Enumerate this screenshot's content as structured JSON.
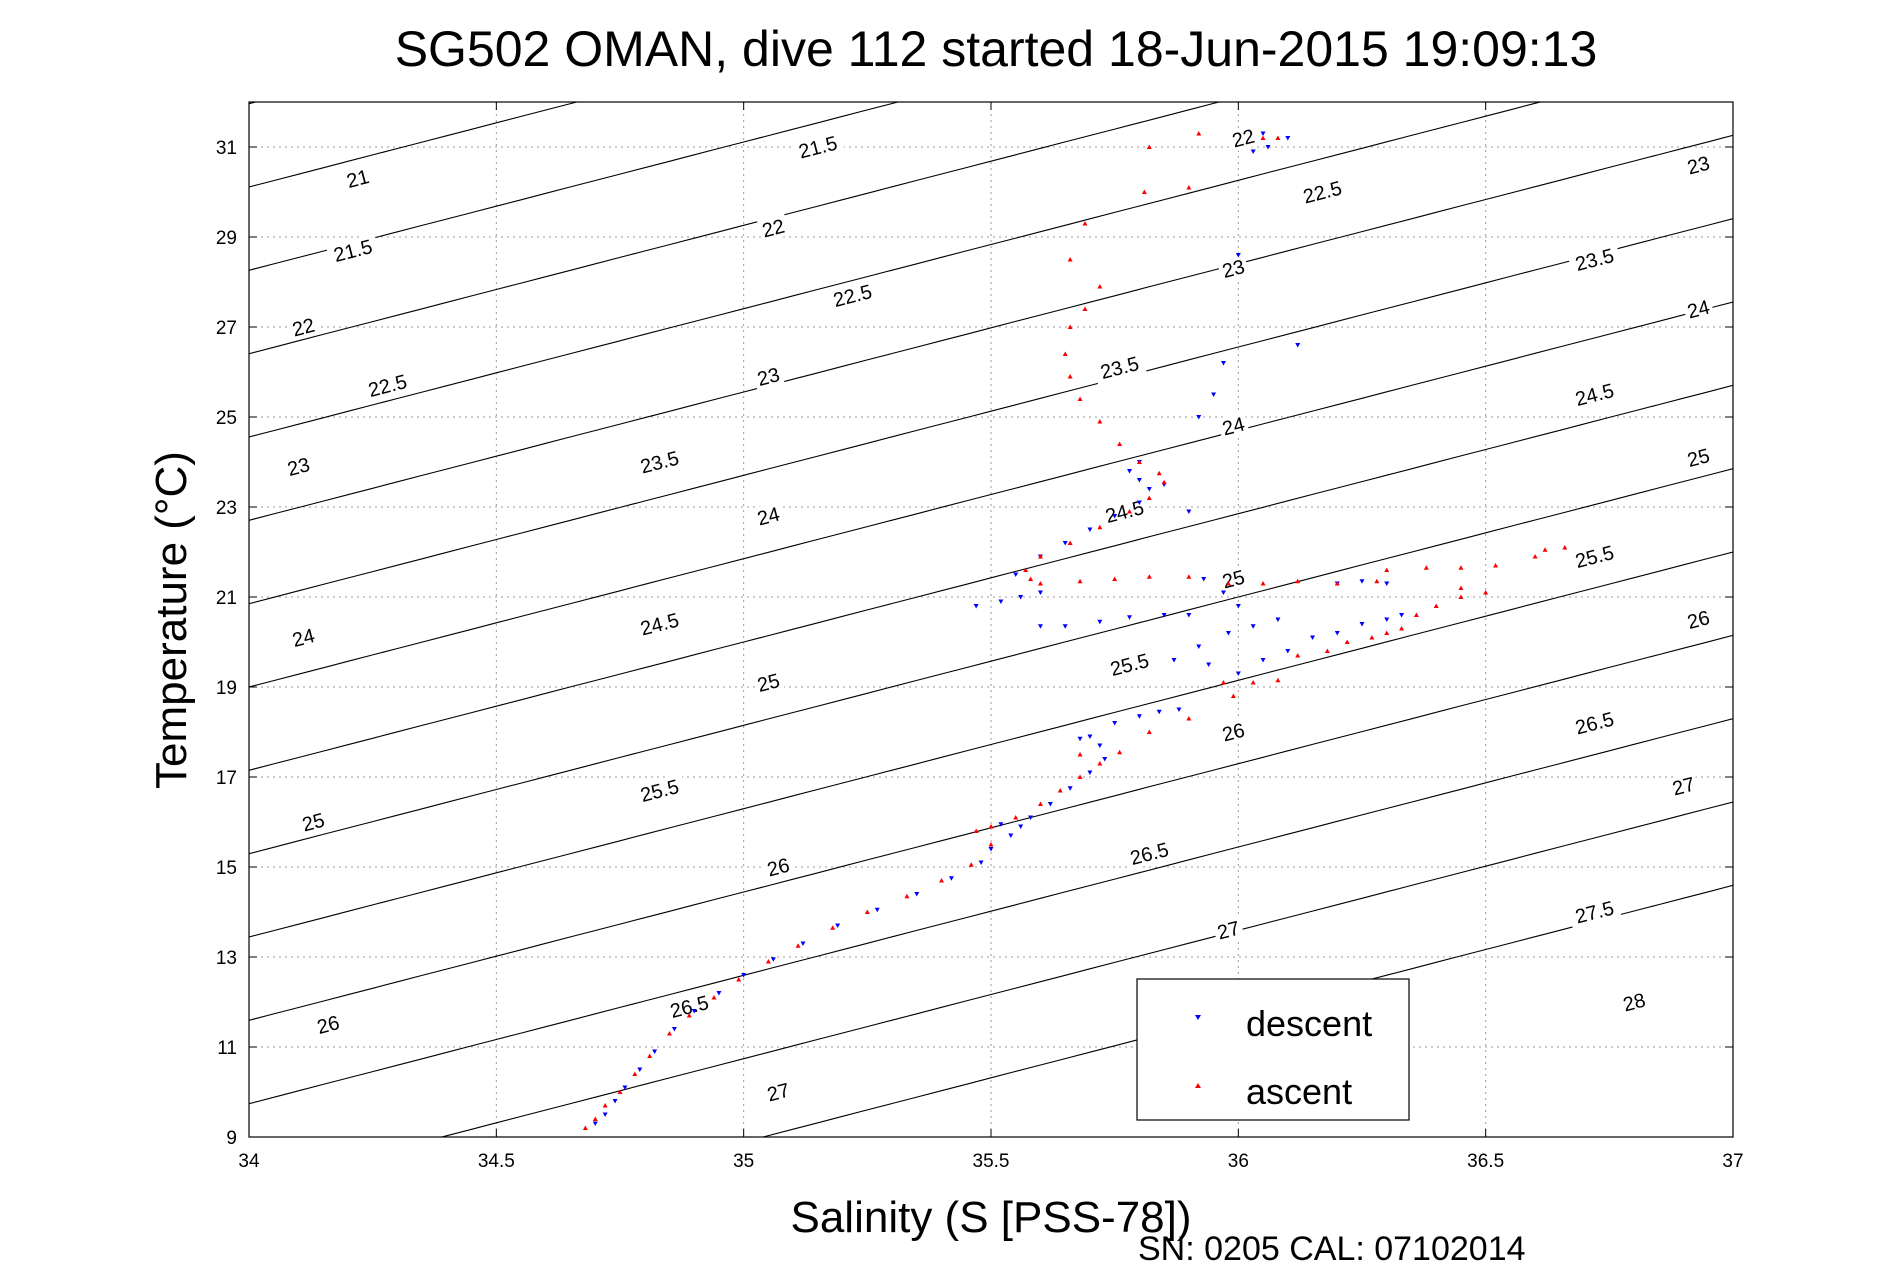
{
  "chart_data": {
    "type": "scatter",
    "title": "SG502 OMAN, dive 112 started 18-Jun-2015 19:09:13",
    "xlabel": "Salinity (S [PSS-78])",
    "ylabel": "Temperature (°C)",
    "footer": "SN: 0205  CAL: 07102014",
    "xlim": [
      34,
      37
    ],
    "ylim": [
      9,
      32
    ],
    "xticks": [
      34,
      34.5,
      35,
      35.5,
      36,
      36.5,
      37
    ],
    "xtick_labels": [
      "34",
      "34.5",
      "35",
      "35.5",
      "36",
      "36.5",
      "37"
    ],
    "yticks": [
      9,
      11,
      13,
      15,
      17,
      19,
      21,
      23,
      25,
      27,
      29,
      31
    ],
    "ytick_labels": [
      "9",
      "11",
      "13",
      "15",
      "17",
      "19",
      "21",
      "23",
      "25",
      "27",
      "29",
      "31"
    ],
    "grid": true,
    "legend": {
      "position": "bottom-right",
      "entries": [
        {
          "label": "descent",
          "color": "#0000ff",
          "marker": "triangle-down"
        },
        {
          "label": "ascent",
          "color": "#ff0000",
          "marker": "triangle-up"
        }
      ]
    },
    "contours": {
      "quantity": "density anomaly (sigma-theta)",
      "levels": [
        "21",
        "21.5",
        "22",
        "22.5",
        "23",
        "23.5",
        "24",
        "24.5",
        "25",
        "25.5",
        "26",
        "26.5",
        "27",
        "27.5",
        "28"
      ],
      "labels": [
        {
          "text": "21",
          "s": 34.22,
          "t": 30.3
        },
        {
          "text": "21.5",
          "s": 34.21,
          "t": 28.7
        },
        {
          "text": "22",
          "s": 34.11,
          "t": 27.0
        },
        {
          "text": "22.5",
          "s": 34.28,
          "t": 25.7
        },
        {
          "text": "23",
          "s": 34.1,
          "t": 23.9
        },
        {
          "text": "24",
          "s": 34.11,
          "t": 20.1
        },
        {
          "text": "25",
          "s": 34.13,
          "t": 16.0
        },
        {
          "text": "26",
          "s": 34.16,
          "t": 11.5
        },
        {
          "text": "21.5",
          "s": 35.15,
          "t": 31.0
        },
        {
          "text": "22",
          "s": 35.06,
          "t": 29.2
        },
        {
          "text": "22.5",
          "s": 35.22,
          "t": 27.7
        },
        {
          "text": "23",
          "s": 35.05,
          "t": 25.9
        },
        {
          "text": "23.5",
          "s": 34.83,
          "t": 24.0
        },
        {
          "text": "24",
          "s": 35.05,
          "t": 22.8
        },
        {
          "text": "24.5",
          "s": 34.83,
          "t": 20.4
        },
        {
          "text": "25",
          "s": 35.05,
          "t": 19.1
        },
        {
          "text": "25.5",
          "s": 34.83,
          "t": 16.7
        },
        {
          "text": "26",
          "s": 35.07,
          "t": 15.0
        },
        {
          "text": "26.5",
          "s": 34.89,
          "t": 11.9
        },
        {
          "text": "27",
          "s": 35.07,
          "t": 10.0
        },
        {
          "text": "22",
          "s": 36.01,
          "t": 31.2
        },
        {
          "text": "22.5",
          "s": 36.17,
          "t": 30.0
        },
        {
          "text": "23",
          "s": 35.99,
          "t": 28.3
        },
        {
          "text": "23.5",
          "s": 35.76,
          "t": 26.1
        },
        {
          "text": "24",
          "s": 35.99,
          "t": 24.8
        },
        {
          "text": "24.5",
          "s": 35.77,
          "t": 22.9
        },
        {
          "text": "25",
          "s": 35.99,
          "t": 21.4
        },
        {
          "text": "25.5",
          "s": 35.78,
          "t": 19.5
        },
        {
          "text": "26",
          "s": 35.99,
          "t": 18.0
        },
        {
          "text": "26.5",
          "s": 35.82,
          "t": 15.3
        },
        {
          "text": "27",
          "s": 35.98,
          "t": 13.6
        },
        {
          "text": "23",
          "s": 36.93,
          "t": 30.6
        },
        {
          "text": "23.5",
          "s": 36.72,
          "t": 28.5
        },
        {
          "text": "24",
          "s": 36.93,
          "t": 27.4
        },
        {
          "text": "24.5",
          "s": 36.72,
          "t": 25.5
        },
        {
          "text": "25",
          "s": 36.93,
          "t": 24.1
        },
        {
          "text": "25.5",
          "s": 36.72,
          "t": 21.9
        },
        {
          "text": "26",
          "s": 36.93,
          "t": 20.5
        },
        {
          "text": "26.5",
          "s": 36.72,
          "t": 18.2
        },
        {
          "text": "27",
          "s": 36.9,
          "t": 16.8
        },
        {
          "text": "27.5",
          "s": 36.72,
          "t": 14.0
        },
        {
          "text": "28",
          "s": 36.8,
          "t": 12.0
        }
      ]
    },
    "series": [
      {
        "name": "descent",
        "color": "#0000ff",
        "marker": "triangle-down",
        "points": [
          [
            34.7,
            9.3
          ],
          [
            34.72,
            9.5
          ],
          [
            34.74,
            9.8
          ],
          [
            34.76,
            10.1
          ],
          [
            34.79,
            10.5
          ],
          [
            34.82,
            10.9
          ],
          [
            34.86,
            11.4
          ],
          [
            34.9,
            11.8
          ],
          [
            34.95,
            12.2
          ],
          [
            35.0,
            12.6
          ],
          [
            35.06,
            12.95
          ],
          [
            35.12,
            13.3
          ],
          [
            35.19,
            13.7
          ],
          [
            35.27,
            14.05
          ],
          [
            35.35,
            14.4
          ],
          [
            35.42,
            14.75
          ],
          [
            35.48,
            15.1
          ],
          [
            35.5,
            15.4
          ],
          [
            35.54,
            15.7
          ],
          [
            35.56,
            15.9
          ],
          [
            35.52,
            15.95
          ],
          [
            35.58,
            16.1
          ],
          [
            35.62,
            16.4
          ],
          [
            35.66,
            16.75
          ],
          [
            35.7,
            17.1
          ],
          [
            35.73,
            17.4
          ],
          [
            35.72,
            17.7
          ],
          [
            35.7,
            17.9
          ],
          [
            35.68,
            17.85
          ],
          [
            35.75,
            18.2
          ],
          [
            35.8,
            18.35
          ],
          [
            35.84,
            18.45
          ],
          [
            35.88,
            18.5
          ],
          [
            35.94,
            19.5
          ],
          [
            36.0,
            19.3
          ],
          [
            36.05,
            19.6
          ],
          [
            36.1,
            19.8
          ],
          [
            36.15,
            20.1
          ],
          [
            36.2,
            20.2
          ],
          [
            36.25,
            20.4
          ],
          [
            36.3,
            20.5
          ],
          [
            36.33,
            20.6
          ],
          [
            36.08,
            20.5
          ],
          [
            36.03,
            20.35
          ],
          [
            35.98,
            20.2
          ],
          [
            35.92,
            19.9
          ],
          [
            35.87,
            19.6
          ],
          [
            35.6,
            20.35
          ],
          [
            35.65,
            20.35
          ],
          [
            35.72,
            20.45
          ],
          [
            35.78,
            20.55
          ],
          [
            35.85,
            20.6
          ],
          [
            35.9,
            20.6
          ],
          [
            35.47,
            20.8
          ],
          [
            35.52,
            20.9
          ],
          [
            35.56,
            21.0
          ],
          [
            35.6,
            21.1
          ],
          [
            35.55,
            21.5
          ],
          [
            35.6,
            21.9
          ],
          [
            35.65,
            22.2
          ],
          [
            35.7,
            22.5
          ],
          [
            35.75,
            22.8
          ],
          [
            35.8,
            23.1
          ],
          [
            35.82,
            23.4
          ],
          [
            35.8,
            23.6
          ],
          [
            35.78,
            23.8
          ],
          [
            35.8,
            24.0
          ],
          [
            35.85,
            23.5
          ],
          [
            35.9,
            22.9
          ],
          [
            35.93,
            21.4
          ],
          [
            35.97,
            21.1
          ],
          [
            36.0,
            20.8
          ],
          [
            36.2,
            21.3
          ],
          [
            36.25,
            21.35
          ],
          [
            36.3,
            21.3
          ],
          [
            35.92,
            25.0
          ],
          [
            35.95,
            25.5
          ],
          [
            35.97,
            26.2
          ],
          [
            36.0,
            28.6
          ],
          [
            36.12,
            26.6
          ],
          [
            36.05,
            31.3
          ],
          [
            36.1,
            31.2
          ],
          [
            36.06,
            31.0
          ],
          [
            36.03,
            30.9
          ]
        ]
      },
      {
        "name": "ascent",
        "color": "#ff0000",
        "marker": "triangle-up",
        "points": [
          [
            34.68,
            9.2
          ],
          [
            34.7,
            9.4
          ],
          [
            34.72,
            9.7
          ],
          [
            34.75,
            10.0
          ],
          [
            34.78,
            10.4
          ],
          [
            34.81,
            10.8
          ],
          [
            34.85,
            11.3
          ],
          [
            34.89,
            11.7
          ],
          [
            34.94,
            12.1
          ],
          [
            34.99,
            12.5
          ],
          [
            35.05,
            12.9
          ],
          [
            35.11,
            13.25
          ],
          [
            35.18,
            13.65
          ],
          [
            35.25,
            14.0
          ],
          [
            35.33,
            14.35
          ],
          [
            35.4,
            14.7
          ],
          [
            35.46,
            15.05
          ],
          [
            35.5,
            15.5
          ],
          [
            35.47,
            15.8
          ],
          [
            35.5,
            15.9
          ],
          [
            35.55,
            16.1
          ],
          [
            35.6,
            16.4
          ],
          [
            35.64,
            16.7
          ],
          [
            35.68,
            17.0
          ],
          [
            35.72,
            17.3
          ],
          [
            35.76,
            17.55
          ],
          [
            35.68,
            17.5
          ],
          [
            35.82,
            18.0
          ],
          [
            35.9,
            18.3
          ],
          [
            35.97,
            19.1
          ],
          [
            36.03,
            19.1
          ],
          [
            36.08,
            19.15
          ],
          [
            35.99,
            18.8
          ],
          [
            36.12,
            19.7
          ],
          [
            36.18,
            19.8
          ],
          [
            36.22,
            20.0
          ],
          [
            36.27,
            20.1
          ],
          [
            36.3,
            20.2
          ],
          [
            36.33,
            20.3
          ],
          [
            36.36,
            20.6
          ],
          [
            36.4,
            20.8
          ],
          [
            36.45,
            21.0
          ],
          [
            36.5,
            21.1
          ],
          [
            36.45,
            21.2
          ],
          [
            36.3,
            21.6
          ],
          [
            36.38,
            21.65
          ],
          [
            36.45,
            21.65
          ],
          [
            36.52,
            21.7
          ],
          [
            36.6,
            21.9
          ],
          [
            36.66,
            22.1
          ],
          [
            36.62,
            22.05
          ],
          [
            35.68,
            21.35
          ],
          [
            35.75,
            21.4
          ],
          [
            35.82,
            21.45
          ],
          [
            35.9,
            21.45
          ],
          [
            35.98,
            21.3
          ],
          [
            36.05,
            21.3
          ],
          [
            36.12,
            21.35
          ],
          [
            36.2,
            21.3
          ],
          [
            36.28,
            21.35
          ],
          [
            35.6,
            21.3
          ],
          [
            35.58,
            21.4
          ],
          [
            35.57,
            21.6
          ],
          [
            35.6,
            21.9
          ],
          [
            35.66,
            22.2
          ],
          [
            35.72,
            22.55
          ],
          [
            35.78,
            22.9
          ],
          [
            35.82,
            23.2
          ],
          [
            35.85,
            23.55
          ],
          [
            35.84,
            23.75
          ],
          [
            35.8,
            24.0
          ],
          [
            35.76,
            24.4
          ],
          [
            35.72,
            24.9
          ],
          [
            35.68,
            25.4
          ],
          [
            35.66,
            25.9
          ],
          [
            35.65,
            26.4
          ],
          [
            35.66,
            27.0
          ],
          [
            35.69,
            27.4
          ],
          [
            35.72,
            27.9
          ],
          [
            35.66,
            28.5
          ],
          [
            35.69,
            29.3
          ],
          [
            35.81,
            30.0
          ],
          [
            35.9,
            30.1
          ],
          [
            35.82,
            31.0
          ],
          [
            35.92,
            31.3
          ],
          [
            36.05,
            31.2
          ],
          [
            36.08,
            31.2
          ]
        ]
      }
    ]
  }
}
